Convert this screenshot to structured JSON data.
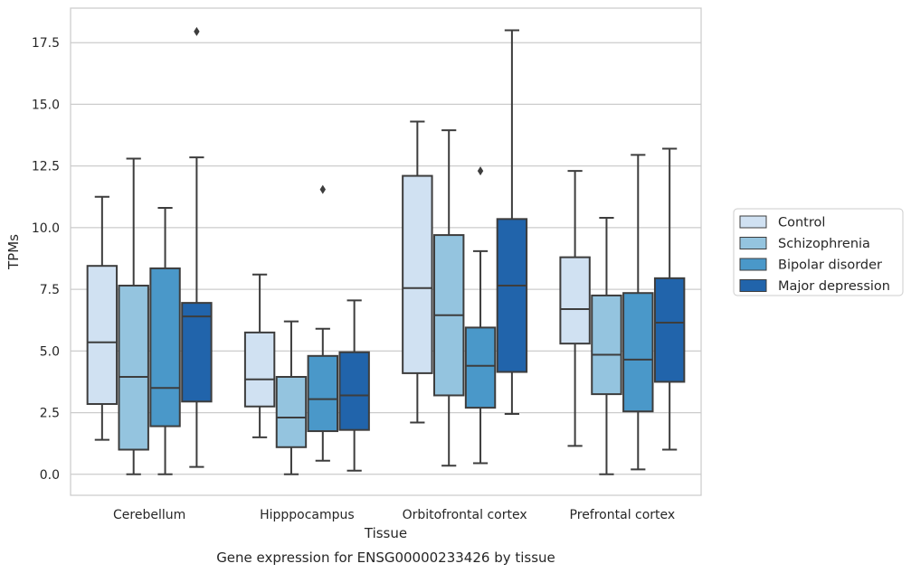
{
  "chart_data": {
    "type": "boxplot",
    "title": "Gene expression for ENSG00000233426 by tissue",
    "xlabel": "Tissue",
    "ylabel": "TPMs",
    "ylim": [
      -0.85,
      18.9
    ],
    "yticks": [
      "0.0",
      "2.5",
      "5.0",
      "7.5",
      "10.0",
      "12.5",
      "15.0",
      "17.5"
    ],
    "grid": "horizontal",
    "legend_position": "right",
    "categories": [
      "Cerebellum",
      "Hipppocampus",
      "Orbitofrontal cortex",
      "Prefrontal cortex"
    ],
    "series": [
      {
        "name": "Control",
        "color": "#d0e1f2",
        "boxes": [
          {
            "whislo": 1.4,
            "q1": 2.85,
            "med": 5.35,
            "q3": 8.45,
            "whishi": 11.25,
            "fliers": []
          },
          {
            "whislo": 1.5,
            "q1": 2.75,
            "med": 3.85,
            "q3": 5.75,
            "whishi": 8.1,
            "fliers": []
          },
          {
            "whislo": 2.1,
            "q1": 4.1,
            "med": 7.55,
            "q3": 12.1,
            "whishi": 14.3,
            "fliers": []
          },
          {
            "whislo": 1.15,
            "q1": 5.3,
            "med": 6.7,
            "q3": 8.8,
            "whishi": 12.3,
            "fliers": []
          }
        ]
      },
      {
        "name": "Schizophrenia",
        "color": "#94c4df",
        "boxes": [
          {
            "whislo": 0.0,
            "q1": 1.0,
            "med": 3.95,
            "q3": 7.65,
            "whishi": 12.8,
            "fliers": []
          },
          {
            "whislo": 0.0,
            "q1": 1.1,
            "med": 2.3,
            "q3": 3.95,
            "whishi": 6.2,
            "fliers": []
          },
          {
            "whislo": 0.35,
            "q1": 3.2,
            "med": 6.45,
            "q3": 9.7,
            "whishi": 13.95,
            "fliers": []
          },
          {
            "whislo": 0.0,
            "q1": 3.25,
            "med": 4.85,
            "q3": 7.25,
            "whishi": 10.4,
            "fliers": []
          }
        ]
      },
      {
        "name": "Bipolar disorder",
        "color": "#4a98c9",
        "boxes": [
          {
            "whislo": 0.0,
            "q1": 1.95,
            "med": 3.5,
            "q3": 8.35,
            "whishi": 10.8,
            "fliers": []
          },
          {
            "whislo": 0.55,
            "q1": 1.75,
            "med": 3.05,
            "q3": 4.8,
            "whishi": 5.9,
            "fliers": [
              11.55
            ]
          },
          {
            "whislo": 0.45,
            "q1": 2.7,
            "med": 4.4,
            "q3": 5.95,
            "whishi": 9.05,
            "fliers": [
              12.3
            ]
          },
          {
            "whislo": 0.2,
            "q1": 2.55,
            "med": 4.65,
            "q3": 7.35,
            "whishi": 12.95,
            "fliers": []
          }
        ]
      },
      {
        "name": "Major depression",
        "color": "#2164ab",
        "boxes": [
          {
            "whislo": 0.3,
            "q1": 2.95,
            "med": 6.4,
            "q3": 6.95,
            "whishi": 12.85,
            "fliers": [
              17.95
            ]
          },
          {
            "whislo": 0.15,
            "q1": 1.8,
            "med": 3.2,
            "q3": 4.95,
            "whishi": 7.05,
            "fliers": []
          },
          {
            "whislo": 2.45,
            "q1": 4.15,
            "med": 7.65,
            "q3": 10.35,
            "whishi": 18.0,
            "fliers": []
          },
          {
            "whislo": 1.0,
            "q1": 3.75,
            "med": 6.15,
            "q3": 7.95,
            "whishi": 13.2,
            "fliers": []
          }
        ]
      }
    ]
  }
}
